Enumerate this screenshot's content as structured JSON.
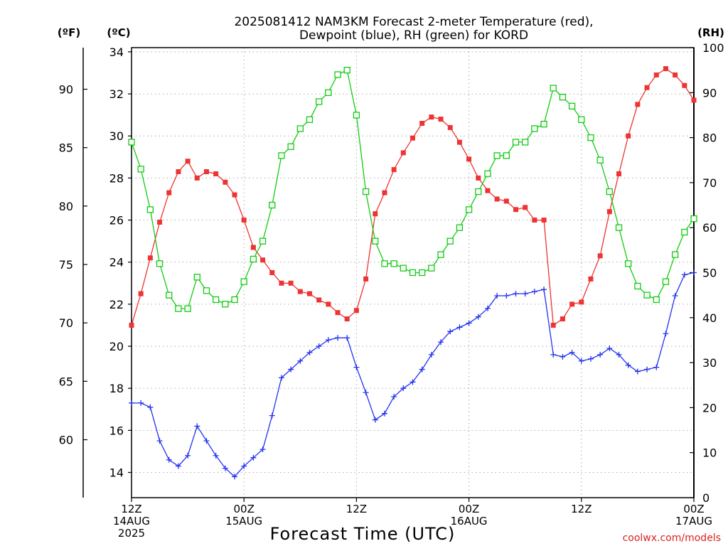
{
  "chart_data": {
    "type": "line",
    "title_lines": [
      "2025081412 NAM3KM Forecast 2-meter Temperature (red),",
      "Dewpoint (blue), RH (green) for KORD"
    ],
    "xlabel": "Forecast Time (UTC)",
    "watermark": "coolwx.com/models",
    "unit_labels": {
      "fahrenheit": "(ºF)",
      "celsius": "(ºC)",
      "rh": "(RH)"
    },
    "x_range_hours": [
      0,
      60
    ],
    "x_ticks": [
      {
        "hour": 0,
        "lines": [
          "12Z",
          "14AUG",
          "2025"
        ]
      },
      {
        "hour": 12,
        "lines": [
          "00Z",
          "15AUG"
        ]
      },
      {
        "hour": 24,
        "lines": [
          "12Z"
        ]
      },
      {
        "hour": 36,
        "lines": [
          "00Z",
          "16AUG"
        ]
      },
      {
        "hour": 48,
        "lines": [
          "12Z"
        ]
      },
      {
        "hour": 60,
        "lines": [
          "00Z",
          "17AUG"
        ]
      }
    ],
    "celsius_axis": {
      "range": [
        12.8,
        34.2
      ],
      "ticks": [
        14,
        16,
        18,
        20,
        22,
        24,
        26,
        28,
        30,
        32,
        34
      ]
    },
    "fahrenheit_axis": {
      "ticks": [
        60,
        65,
        70,
        75,
        80,
        85,
        90
      ]
    },
    "rh_axis": {
      "range": [
        0,
        100
      ],
      "ticks": [
        0,
        10,
        20,
        30,
        40,
        50,
        60,
        70,
        80,
        90,
        100
      ]
    },
    "colors": {
      "temperature": "#ee3333",
      "dewpoint": "#2233ee",
      "rh": "#11cc11",
      "grid": "#aaaaaa"
    },
    "series": [
      {
        "name": "2-meter Temperature",
        "axis": "celsius",
        "marker": "filled-square",
        "color": "#ee3333",
        "hours": [
          0,
          1,
          2,
          3,
          4,
          5,
          6,
          7,
          8,
          9,
          10,
          11,
          12,
          13,
          14,
          15,
          16,
          17,
          18,
          19,
          20,
          21,
          22,
          23,
          24,
          25,
          26,
          27,
          28,
          29,
          30,
          31,
          32,
          33,
          34,
          35,
          36,
          37,
          38,
          39,
          40,
          41,
          42,
          43,
          44,
          45,
          46,
          47,
          48,
          49,
          50,
          51,
          52,
          53,
          54,
          55,
          56,
          57,
          58,
          59,
          60
        ],
        "values": [
          21.0,
          22.5,
          24.2,
          25.9,
          27.3,
          28.3,
          28.8,
          28.0,
          28.3,
          28.2,
          27.8,
          27.2,
          26.0,
          24.7,
          24.1,
          23.5,
          23.0,
          23.0,
          22.6,
          22.5,
          22.2,
          22.0,
          21.6,
          21.3,
          21.7,
          23.2,
          26.3,
          27.3,
          28.4,
          29.2,
          29.9,
          30.6,
          30.9,
          30.8,
          30.4,
          29.7,
          28.9,
          28.0,
          27.4,
          27.0,
          26.9,
          26.5,
          26.6,
          26.0,
          26.0,
          21.0,
          21.3,
          22.0,
          22.1,
          23.2,
          24.3,
          26.4,
          28.2,
          30.0,
          31.5,
          32.3,
          32.9,
          33.2,
          32.9,
          32.4,
          31.7
        ]
      },
      {
        "name": "Dewpoint",
        "axis": "celsius",
        "marker": "plus",
        "color": "#2233ee",
        "hours": [
          0,
          1,
          2,
          3,
          4,
          5,
          6,
          7,
          8,
          9,
          10,
          11,
          12,
          13,
          14,
          15,
          16,
          17,
          18,
          19,
          20,
          21,
          22,
          23,
          24,
          25,
          26,
          27,
          28,
          29,
          30,
          31,
          32,
          33,
          34,
          35,
          36,
          37,
          38,
          39,
          40,
          41,
          42,
          43,
          44,
          45,
          46,
          47,
          48,
          49,
          50,
          51,
          52,
          53,
          54,
          55,
          56,
          57,
          58,
          59,
          60
        ],
        "values": [
          17.3,
          17.3,
          17.1,
          15.5,
          14.6,
          14.3,
          14.8,
          16.2,
          15.5,
          14.8,
          14.2,
          13.8,
          14.3,
          14.7,
          15.1,
          16.7,
          18.5,
          18.9,
          19.3,
          19.7,
          20.0,
          20.3,
          20.4,
          20.4,
          19.0,
          17.8,
          16.5,
          16.8,
          17.6,
          18.0,
          18.3,
          18.9,
          19.6,
          20.2,
          20.7,
          20.9,
          21.1,
          21.4,
          21.8,
          22.4,
          22.4,
          22.5,
          22.5,
          22.6,
          22.7,
          19.6,
          19.5,
          19.7,
          19.3,
          19.4,
          19.6,
          19.9,
          19.6,
          19.1,
          18.8,
          18.9,
          19.0,
          20.6,
          22.4,
          23.4,
          23.5
        ]
      },
      {
        "name": "RH",
        "axis": "rh",
        "marker": "open-square",
        "color": "#11cc11",
        "hours": [
          0,
          1,
          2,
          3,
          4,
          5,
          6,
          7,
          8,
          9,
          10,
          11,
          12,
          13,
          14,
          15,
          16,
          17,
          18,
          19,
          20,
          21,
          22,
          23,
          24,
          25,
          26,
          27,
          28,
          29,
          30,
          31,
          32,
          33,
          34,
          35,
          36,
          37,
          38,
          39,
          40,
          41,
          42,
          43,
          44,
          45,
          46,
          47,
          48,
          49,
          50,
          51,
          52,
          53,
          54,
          55,
          56,
          57,
          58,
          59,
          60
        ],
        "values": [
          79,
          73,
          64,
          52,
          45,
          42,
          42,
          49,
          46,
          44,
          43,
          44,
          48,
          53,
          57,
          65,
          76,
          78,
          82,
          84,
          88,
          90,
          94,
          95,
          85,
          68,
          57,
          52,
          52,
          51,
          50,
          50,
          51,
          54,
          57,
          60,
          64,
          68,
          72,
          76,
          76,
          79,
          79,
          82,
          83,
          91,
          89,
          87,
          84,
          80,
          75,
          68,
          60,
          52,
          47,
          45,
          44,
          48,
          54,
          59,
          62
        ]
      }
    ]
  }
}
